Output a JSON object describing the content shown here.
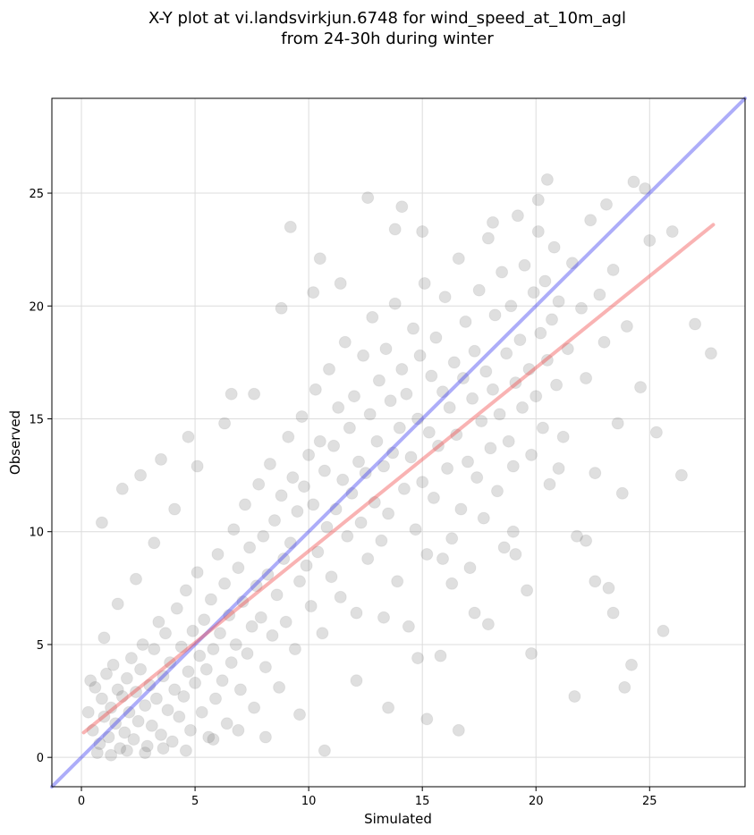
{
  "chart_data": {
    "type": "scatter",
    "title": "X-Y plot at vi.landsvirkjun.6748 for wind_speed_at_10m_agl",
    "subtitle": "from 24-30h during winter",
    "xlabel": "Simulated",
    "ylabel": "Observed",
    "xlim": [
      -1.3,
      29.2
    ],
    "ylim": [
      -1.3,
      29.2
    ],
    "x_ticks": [
      0,
      5,
      10,
      15,
      20,
      25
    ],
    "y_ticks": [
      0,
      5,
      10,
      15,
      20,
      25
    ],
    "grid": true,
    "point_color": "#444444",
    "identity_line": {
      "color": "#3b3bf0",
      "x": [
        -1.3,
        29.2
      ],
      "y": [
        -1.3,
        29.2
      ]
    },
    "fit_line": {
      "color": "#f04a4a",
      "x": [
        0.1,
        27.8
      ],
      "y": [
        1.1,
        23.6
      ]
    },
    "points": [
      [
        0.3,
        2.0
      ],
      [
        0.5,
        1.2
      ],
      [
        0.6,
        3.1
      ],
      [
        0.8,
        0.6
      ],
      [
        0.9,
        2.6
      ],
      [
        1.0,
        1.8
      ],
      [
        1.1,
        3.7
      ],
      [
        1.2,
        0.9
      ],
      [
        1.3,
        2.2
      ],
      [
        1.4,
        4.1
      ],
      [
        1.5,
        1.5
      ],
      [
        1.6,
        3.0
      ],
      [
        1.7,
        0.4
      ],
      [
        1.8,
        2.7
      ],
      [
        1.9,
        1.1
      ],
      [
        2.0,
        3.5
      ],
      [
        2.1,
        2.0
      ],
      [
        2.2,
        4.4
      ],
      [
        2.3,
        0.8
      ],
      [
        2.4,
        2.9
      ],
      [
        2.5,
        1.6
      ],
      [
        2.6,
        3.9
      ],
      [
        2.7,
        5.0
      ],
      [
        2.8,
        2.3
      ],
      [
        2.9,
        0.5
      ],
      [
        3.0,
        3.2
      ],
      [
        3.1,
        1.4
      ],
      [
        3.2,
        4.8
      ],
      [
        3.3,
        2.6
      ],
      [
        3.4,
        6.0
      ],
      [
        3.5,
        1.0
      ],
      [
        3.6,
        3.6
      ],
      [
        3.7,
        5.5
      ],
      [
        3.8,
        2.1
      ],
      [
        3.9,
        4.2
      ],
      [
        4.0,
        0.7
      ],
      [
        4.1,
        3.0
      ],
      [
        4.2,
        6.6
      ],
      [
        4.3,
        1.8
      ],
      [
        4.4,
        4.9
      ],
      [
        4.5,
        2.7
      ],
      [
        4.6,
        7.4
      ],
      [
        4.7,
        3.8
      ],
      [
        4.8,
        1.2
      ],
      [
        4.9,
        5.6
      ],
      [
        5.0,
        3.3
      ],
      [
        5.1,
        8.2
      ],
      [
        5.2,
        4.5
      ],
      [
        5.3,
        2.0
      ],
      [
        5.4,
        6.1
      ],
      [
        5.5,
        3.9
      ],
      [
        5.6,
        0.9
      ],
      [
        5.7,
        7.0
      ],
      [
        5.8,
        4.8
      ],
      [
        5.9,
        2.6
      ],
      [
        6.0,
        9.0
      ],
      [
        6.1,
        5.5
      ],
      [
        6.2,
        3.4
      ],
      [
        6.3,
        7.7
      ],
      [
        6.4,
        1.5
      ],
      [
        6.5,
        6.3
      ],
      [
        6.6,
        4.2
      ],
      [
        6.7,
        10.1
      ],
      [
        6.8,
        5.0
      ],
      [
        6.9,
        8.4
      ],
      [
        7.0,
        3.0
      ],
      [
        7.1,
        6.9
      ],
      [
        7.2,
        11.2
      ],
      [
        7.3,
        4.6
      ],
      [
        7.4,
        9.3
      ],
      [
        7.5,
        5.8
      ],
      [
        7.6,
        2.2
      ],
      [
        7.7,
        7.6
      ],
      [
        7.8,
        12.1
      ],
      [
        7.9,
        6.2
      ],
      [
        8.0,
        9.8
      ],
      [
        8.1,
        4.0
      ],
      [
        8.2,
        8.1
      ],
      [
        8.3,
        13.0
      ],
      [
        8.4,
        5.4
      ],
      [
        8.5,
        10.5
      ],
      [
        8.6,
        7.2
      ],
      [
        8.7,
        3.1
      ],
      [
        8.8,
        11.6
      ],
      [
        8.9,
        8.8
      ],
      [
        9.0,
        6.0
      ],
      [
        9.1,
        14.2
      ],
      [
        9.2,
        9.5
      ],
      [
        9.3,
        12.4
      ],
      [
        9.4,
        4.8
      ],
      [
        9.5,
        10.9
      ],
      [
        9.6,
        7.8
      ],
      [
        9.7,
        15.1
      ],
      [
        9.8,
        12.0
      ],
      [
        9.9,
        8.5
      ],
      [
        10.0,
        13.4
      ],
      [
        10.1,
        6.7
      ],
      [
        10.2,
        11.2
      ],
      [
        10.3,
        16.3
      ],
      [
        10.4,
        9.1
      ],
      [
        10.5,
        14.0
      ],
      [
        10.6,
        5.5
      ],
      [
        10.7,
        12.7
      ],
      [
        10.8,
        10.2
      ],
      [
        10.9,
        17.2
      ],
      [
        11.0,
        8.0
      ],
      [
        11.1,
        13.8
      ],
      [
        11.2,
        11.0
      ],
      [
        11.3,
        15.5
      ],
      [
        11.4,
        7.1
      ],
      [
        11.5,
        12.3
      ],
      [
        11.6,
        18.4
      ],
      [
        11.7,
        9.8
      ],
      [
        11.8,
        14.6
      ],
      [
        11.9,
        11.7
      ],
      [
        12.0,
        16.0
      ],
      [
        12.1,
        6.4
      ],
      [
        12.2,
        13.1
      ],
      [
        12.3,
        10.4
      ],
      [
        12.4,
        17.8
      ],
      [
        12.5,
        12.6
      ],
      [
        12.6,
        8.8
      ],
      [
        12.7,
        15.2
      ],
      [
        12.8,
        19.5
      ],
      [
        12.9,
        11.3
      ],
      [
        13.0,
        14.0
      ],
      [
        13.1,
        16.7
      ],
      [
        13.2,
        9.6
      ],
      [
        13.3,
        12.9
      ],
      [
        13.4,
        18.1
      ],
      [
        13.5,
        10.8
      ],
      [
        13.6,
        15.8
      ],
      [
        13.7,
        13.5
      ],
      [
        13.8,
        20.1
      ],
      [
        13.9,
        7.8
      ],
      [
        14.0,
        14.6
      ],
      [
        14.1,
        17.2
      ],
      [
        14.2,
        11.9
      ],
      [
        14.3,
        16.1
      ],
      [
        14.4,
        5.8
      ],
      [
        14.5,
        13.3
      ],
      [
        14.6,
        19.0
      ],
      [
        14.7,
        10.1
      ],
      [
        14.8,
        15.0
      ],
      [
        14.9,
        17.8
      ],
      [
        15.0,
        12.2
      ],
      [
        15.1,
        21.0
      ],
      [
        15.2,
        9.0
      ],
      [
        15.3,
        14.4
      ],
      [
        15.4,
        16.9
      ],
      [
        15.5,
        11.5
      ],
      [
        15.6,
        18.6
      ],
      [
        15.7,
        13.8
      ],
      [
        15.8,
        4.5
      ],
      [
        15.9,
        16.2
      ],
      [
        16.0,
        20.4
      ],
      [
        16.1,
        12.8
      ],
      [
        16.2,
        15.5
      ],
      [
        16.3,
        9.7
      ],
      [
        16.4,
        17.5
      ],
      [
        16.5,
        14.3
      ],
      [
        16.6,
        22.1
      ],
      [
        16.7,
        11.0
      ],
      [
        16.8,
        16.8
      ],
      [
        16.9,
        19.3
      ],
      [
        17.0,
        13.1
      ],
      [
        17.1,
        8.4
      ],
      [
        17.2,
        15.9
      ],
      [
        17.3,
        18.0
      ],
      [
        17.4,
        12.4
      ],
      [
        17.5,
        20.7
      ],
      [
        17.6,
        14.9
      ],
      [
        17.7,
        10.6
      ],
      [
        17.8,
        17.1
      ],
      [
        17.9,
        23.0
      ],
      [
        18.0,
        13.7
      ],
      [
        18.1,
        16.3
      ],
      [
        18.2,
        19.6
      ],
      [
        18.3,
        11.8
      ],
      [
        18.4,
        15.2
      ],
      [
        18.5,
        21.5
      ],
      [
        18.6,
        9.3
      ],
      [
        18.7,
        17.9
      ],
      [
        18.8,
        14.0
      ],
      [
        18.9,
        20.0
      ],
      [
        19.0,
        12.9
      ],
      [
        19.1,
        16.6
      ],
      [
        19.2,
        24.0
      ],
      [
        19.3,
        18.5
      ],
      [
        19.4,
        15.5
      ],
      [
        19.5,
        21.8
      ],
      [
        19.6,
        7.4
      ],
      [
        19.7,
        17.2
      ],
      [
        19.8,
        13.4
      ],
      [
        19.9,
        20.6
      ],
      [
        20.0,
        16.0
      ],
      [
        20.1,
        23.3
      ],
      [
        20.2,
        18.8
      ],
      [
        20.3,
        14.6
      ],
      [
        20.4,
        21.1
      ],
      [
        20.5,
        17.6
      ],
      [
        20.6,
        12.1
      ],
      [
        20.7,
        19.4
      ],
      [
        20.8,
        22.6
      ],
      [
        20.9,
        16.5
      ],
      [
        21.0,
        20.2
      ],
      [
        21.2,
        14.2
      ],
      [
        21.4,
        18.1
      ],
      [
        21.6,
        21.9
      ],
      [
        21.8,
        9.8
      ],
      [
        22.0,
        19.9
      ],
      [
        22.2,
        16.8
      ],
      [
        22.4,
        23.8
      ],
      [
        22.6,
        12.6
      ],
      [
        22.8,
        20.5
      ],
      [
        23.0,
        18.4
      ],
      [
        23.2,
        7.5
      ],
      [
        23.4,
        21.6
      ],
      [
        23.6,
        14.8
      ],
      [
        23.8,
        11.7
      ],
      [
        24.0,
        19.1
      ],
      [
        24.3,
        25.5
      ],
      [
        24.6,
        16.4
      ],
      [
        25.0,
        22.9
      ],
      [
        25.3,
        14.4
      ],
      [
        25.6,
        5.6
      ],
      [
        26.0,
        23.3
      ],
      [
        26.4,
        12.5
      ],
      [
        27.0,
        19.2
      ],
      [
        27.7,
        17.9
      ],
      [
        0.4,
        3.4
      ],
      [
        0.7,
        0.2
      ],
      [
        1.0,
        5.3
      ],
      [
        1.3,
        0.1
      ],
      [
        1.6,
        6.8
      ],
      [
        2.0,
        0.3
      ],
      [
        2.4,
        7.9
      ],
      [
        2.8,
        0.2
      ],
      [
        3.2,
        9.5
      ],
      [
        3.6,
        0.4
      ],
      [
        4.1,
        11.0
      ],
      [
        4.6,
        0.3
      ],
      [
        5.1,
        12.9
      ],
      [
        5.8,
        0.8
      ],
      [
        6.3,
        14.8
      ],
      [
        6.9,
        1.2
      ],
      [
        7.6,
        16.1
      ],
      [
        8.1,
        0.9
      ],
      [
        8.8,
        19.9
      ],
      [
        9.6,
        1.9
      ],
      [
        10.2,
        20.6
      ],
      [
        10.7,
        0.3
      ],
      [
        11.4,
        21.0
      ],
      [
        12.1,
        3.4
      ],
      [
        12.6,
        24.8
      ],
      [
        13.3,
        6.2
      ],
      [
        14.1,
        24.4
      ],
      [
        15.2,
        1.7
      ],
      [
        15.9,
        8.8
      ],
      [
        16.6,
        1.2
      ],
      [
        17.3,
        6.4
      ],
      [
        18.1,
        23.7
      ],
      [
        19.1,
        9.0
      ],
      [
        19.8,
        4.6
      ],
      [
        20.5,
        25.6
      ],
      [
        21.7,
        2.7
      ],
      [
        22.6,
        7.8
      ],
      [
        23.1,
        24.5
      ],
      [
        23.9,
        3.1
      ],
      [
        24.8,
        25.2
      ],
      [
        0.9,
        10.4
      ],
      [
        1.8,
        11.9
      ],
      [
        2.6,
        12.5
      ],
      [
        3.5,
        13.2
      ],
      [
        4.7,
        14.2
      ],
      [
        6.6,
        16.1
      ],
      [
        9.2,
        23.5
      ],
      [
        10.5,
        22.1
      ],
      [
        13.8,
        23.4
      ],
      [
        15.0,
        23.3
      ],
      [
        20.1,
        24.7
      ],
      [
        22.2,
        9.6
      ],
      [
        23.4,
        6.4
      ],
      [
        24.2,
        4.1
      ],
      [
        21.0,
        12.8
      ],
      [
        19.0,
        10.0
      ],
      [
        17.9,
        5.9
      ],
      [
        16.3,
        7.7
      ],
      [
        14.8,
        4.4
      ],
      [
        13.5,
        2.2
      ]
    ]
  }
}
